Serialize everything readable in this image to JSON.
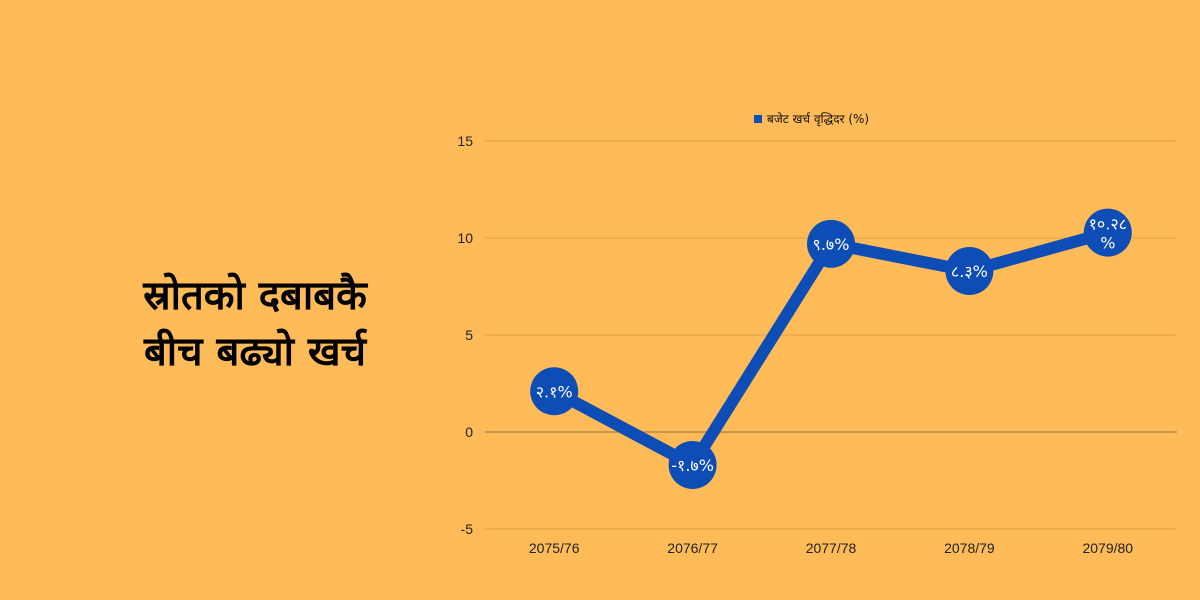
{
  "headline": {
    "line1": "स्रोतको दबाबकै",
    "line2": "बीच बढ्यो खर्च"
  },
  "chart_data": {
    "type": "line",
    "categories": [
      "2075/76",
      "2076/77",
      "2077/78",
      "2078/79",
      "2079/80"
    ],
    "series": [
      {
        "name": "बजेट खर्च वृद्धिदर (%)",
        "values": [
          2.1,
          -1.7,
          9.7,
          8.3,
          10.28
        ],
        "labels": [
          "२.१%",
          "-१.७%",
          "९.७%",
          "८.३%",
          "१०.२८ %"
        ]
      }
    ],
    "ylim": [
      -5,
      15
    ],
    "yticks": [
      "15",
      "10",
      "5",
      "0",
      "-5"
    ],
    "ytick_values": [
      15,
      10,
      5,
      0,
      -5
    ],
    "legend_position": "top",
    "grid": true,
    "colors": {
      "line": "#0D4DB5",
      "grid": "#E0A24A",
      "zero_line": "#A67D45"
    }
  }
}
